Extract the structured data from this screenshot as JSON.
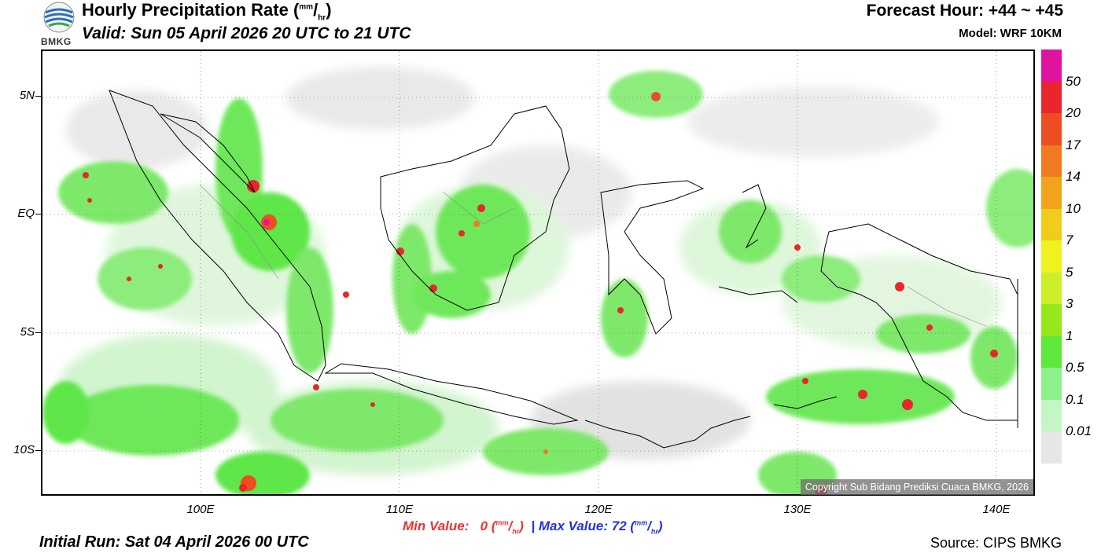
{
  "header": {
    "title": "Hourly Precipitation Rate (",
    "title_unit_num": "mm",
    "title_unit_den": "hr",
    "title_close": ")",
    "valid": "Valid: Sun 05 April 2026 20 UTC to 21 UTC",
    "forecast_hour": "Forecast Hour: +44 ~ +45",
    "model": "Model: WRF 10KM",
    "logo_text": "BMKG"
  },
  "map": {
    "y_ticks": [
      "5N",
      "EQ",
      "5S",
      "10S"
    ],
    "x_ticks": [
      "100E",
      "110E",
      "120E",
      "130E",
      "140E"
    ],
    "copyright": "Copyright Sub Bidang Prediksi Cuaca BMKG, 2026"
  },
  "colorbar": {
    "labels": [
      "50",
      "20",
      "17",
      "14",
      "10",
      "7",
      "5",
      "3",
      "1",
      "0.5",
      "0.1",
      "0.01"
    ],
    "colors": [
      "#e0139e",
      "#e8262b",
      "#ec4e22",
      "#f17a21",
      "#f2a31c",
      "#f0cc1c",
      "#eef21e",
      "#cdef2a",
      "#96e81e",
      "#5de83b",
      "#8cf08c",
      "#c4f5c4",
      "#e6e6e6"
    ]
  },
  "footer": {
    "min_label": "Min Value:",
    "min_value": "0",
    "sep": "|",
    "max_label": "Max Value:",
    "max_value": "72",
    "unit_num": "mm",
    "unit_den": "hr",
    "initial_run": "Initial Run: Sat 04 April 2026 00 UTC",
    "source": "Source: CIPS BMKG"
  }
}
